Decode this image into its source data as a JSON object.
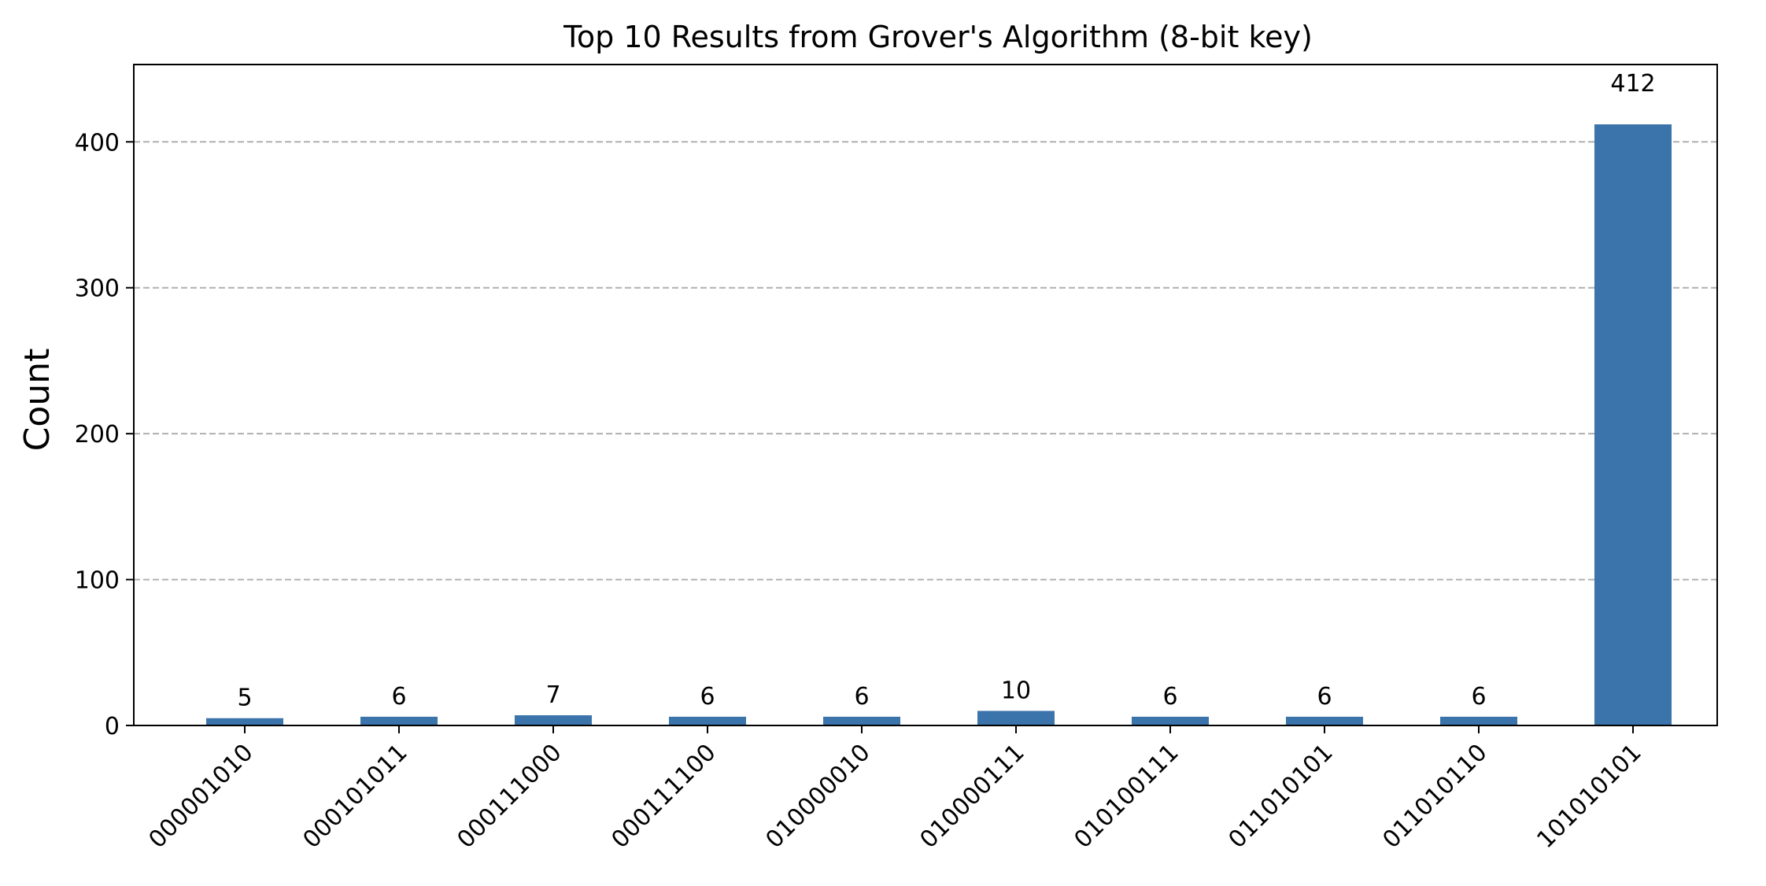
{
  "chart_data": {
    "type": "bar",
    "title": "Top 10 Results from Grover's Algorithm (8-bit key)",
    "xlabel": "",
    "ylabel": "Count",
    "categories": [
      "000001010",
      "000101011",
      "000111000",
      "000111100",
      "010000010",
      "010000111",
      "010100111",
      "011010101",
      "011010110",
      "101010101"
    ],
    "values": [
      5,
      6,
      7,
      6,
      6,
      10,
      6,
      6,
      6,
      412
    ],
    "data_labels": [
      "5",
      "6",
      "7",
      "6",
      "6",
      "10",
      "6",
      "6",
      "6",
      "412"
    ],
    "ylim": [
      0,
      453
    ],
    "yticks": [
      0,
      100,
      200,
      300,
      400
    ],
    "grid": "y-dashed",
    "legend": "none",
    "bar_color": "#3b73ab",
    "grid_color": "#b0b0b0"
  }
}
